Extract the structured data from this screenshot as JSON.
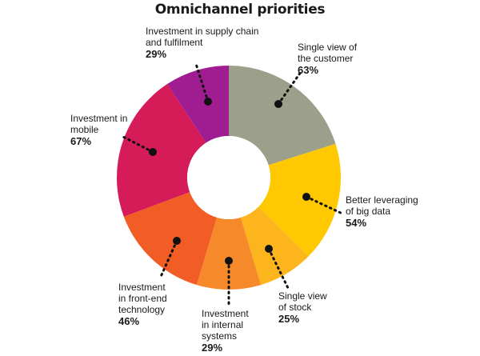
{
  "chart_data": {
    "type": "pie",
    "title": "Omnichannel priorities",
    "units": "%",
    "slices": [
      {
        "key": "customer",
        "lines": [
          "Single view of",
          "the customer"
        ],
        "pct_label": "63%",
        "value": 63,
        "color": "#9ca08a"
      },
      {
        "key": "bigdata",
        "lines": [
          "Better leveraging",
          "of big data"
        ],
        "pct_label": "54%",
        "value": 54,
        "color": "#ffc800"
      },
      {
        "key": "stock",
        "lines": [
          "Single view",
          "of stock"
        ],
        "pct_label": "25%",
        "value": 25,
        "color": "#fdb51d"
      },
      {
        "key": "internal",
        "lines": [
          "Investment",
          "in internal",
          "systems"
        ],
        "pct_label": "29%",
        "value": 29,
        "color": "#f68a2a"
      },
      {
        "key": "frontend",
        "lines": [
          "Investment",
          "in front-end",
          "technology"
        ],
        "pct_label": "46%",
        "value": 46,
        "color": "#f15d25"
      },
      {
        "key": "mobile",
        "lines": [
          "Investment in",
          "mobile"
        ],
        "pct_label": "67%",
        "value": 67,
        "color": "#d51b58"
      },
      {
        "key": "supply",
        "lines": [
          "Investment in supply chain",
          "and fulfilment"
        ],
        "pct_label": "29%",
        "value": 29,
        "color": "#a01c91"
      }
    ]
  }
}
